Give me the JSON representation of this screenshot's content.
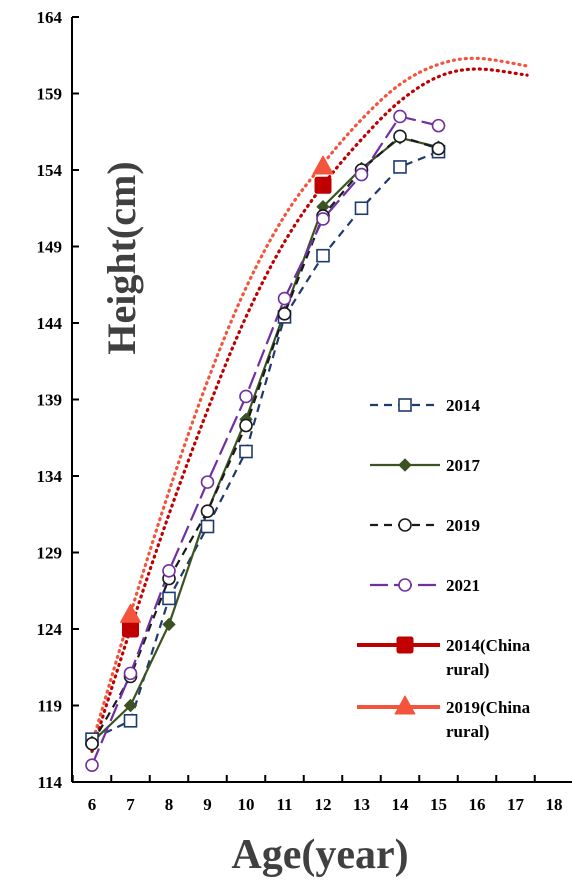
{
  "chart_data": {
    "type": "line",
    "title": "",
    "xlabel": "Age(year)",
    "ylabel": "Height(cm)",
    "xlim": [
      5.6,
      18.3
    ],
    "ylim": [
      114,
      164
    ],
    "x_ticks": [
      "6",
      "7",
      "8",
      "9",
      "10",
      "11",
      "12",
      "13",
      "14",
      "15",
      "16",
      "17",
      "18"
    ],
    "y_ticks": [
      "114",
      "119",
      "124",
      "129",
      "134",
      "139",
      "144",
      "149",
      "154",
      "159",
      "164"
    ],
    "grid": false,
    "legend_position": "right",
    "series": [
      {
        "name": "2014",
        "color": "#1f3a6e",
        "dash": "8,6",
        "marker": "square-open",
        "x": [
          6,
          7,
          8,
          9,
          10,
          11,
          12,
          13,
          14,
          15
        ],
        "y": [
          116.8,
          118.0,
          126.0,
          130.7,
          135.6,
          144.4,
          148.4,
          151.5,
          154.2,
          155.2
        ]
      },
      {
        "name": "2017",
        "color": "#3b5323",
        "dash": "",
        "marker": "diamond-filled",
        "x": [
          6,
          7,
          8,
          9,
          10,
          11,
          12,
          13,
          14,
          15
        ],
        "y": [
          116.6,
          119.0,
          124.3,
          131.7,
          137.7,
          144.7,
          151.6,
          154.1,
          156.1,
          155.5
        ]
      },
      {
        "name": "2019",
        "color": "#1a1a1a",
        "dash": "8,6",
        "marker": "circle-open",
        "x": [
          6,
          7,
          8,
          9,
          10,
          11,
          12,
          13,
          14,
          15
        ],
        "y": [
          116.5,
          120.9,
          127.3,
          131.7,
          137.3,
          144.6,
          151.0,
          154.0,
          156.2,
          155.4
        ]
      },
      {
        "name": "2021",
        "color": "#7030a0",
        "dash": "18,6",
        "marker": "circle-open",
        "x": [
          6,
          7,
          8,
          9,
          10,
          11,
          12,
          13,
          14,
          15
        ],
        "y": [
          115.1,
          121.1,
          127.8,
          133.6,
          139.2,
          145.6,
          150.8,
          153.7,
          157.5,
          156.9
        ]
      },
      {
        "name": "2014(China rural)",
        "color": "#c00000",
        "dash": "2,5",
        "marker": "square-filled",
        "x": [
          7,
          12
        ],
        "y": [
          124.0,
          153.0
        ]
      },
      {
        "name": "2019(China rural)",
        "color": "#f4543c",
        "dash": "2,5",
        "marker": "triangle-filled",
        "x": [
          7,
          12
        ],
        "y": [
          124.9,
          154.2
        ]
      }
    ],
    "trend_curves": [
      {
        "series": "2014(China rural)",
        "color": "#c00000",
        "x": [
          6,
          7,
          8,
          9,
          10,
          11,
          12,
          13,
          14,
          15,
          16,
          17.3
        ],
        "y": [
          116.0,
          124.0,
          131.5,
          138.3,
          144.4,
          149.3,
          153.0,
          156.0,
          158.5,
          160.1,
          160.6,
          160.2
        ]
      },
      {
        "series": "2019(China rural)",
        "color": "#f4543c",
        "x": [
          6,
          7,
          8,
          9,
          10,
          11,
          12,
          13,
          14,
          15,
          16,
          17.3
        ],
        "y": [
          116.5,
          125.0,
          133.0,
          140.2,
          146.3,
          151.0,
          154.4,
          157.3,
          159.6,
          160.9,
          161.3,
          160.8
        ]
      }
    ],
    "legend": [
      {
        "label": "2014",
        "lines": [
          "2014"
        ]
      },
      {
        "label": "2017",
        "lines": [
          "2017"
        ]
      },
      {
        "label": "2019",
        "lines": [
          "2019"
        ]
      },
      {
        "label": "2021",
        "lines": [
          "2021"
        ]
      },
      {
        "label": "2014(China rural)",
        "lines": [
          "2014(China",
          "rural)"
        ]
      },
      {
        "label": "2019(China rural)",
        "lines": [
          "2019(China",
          "rural)"
        ]
      }
    ]
  }
}
